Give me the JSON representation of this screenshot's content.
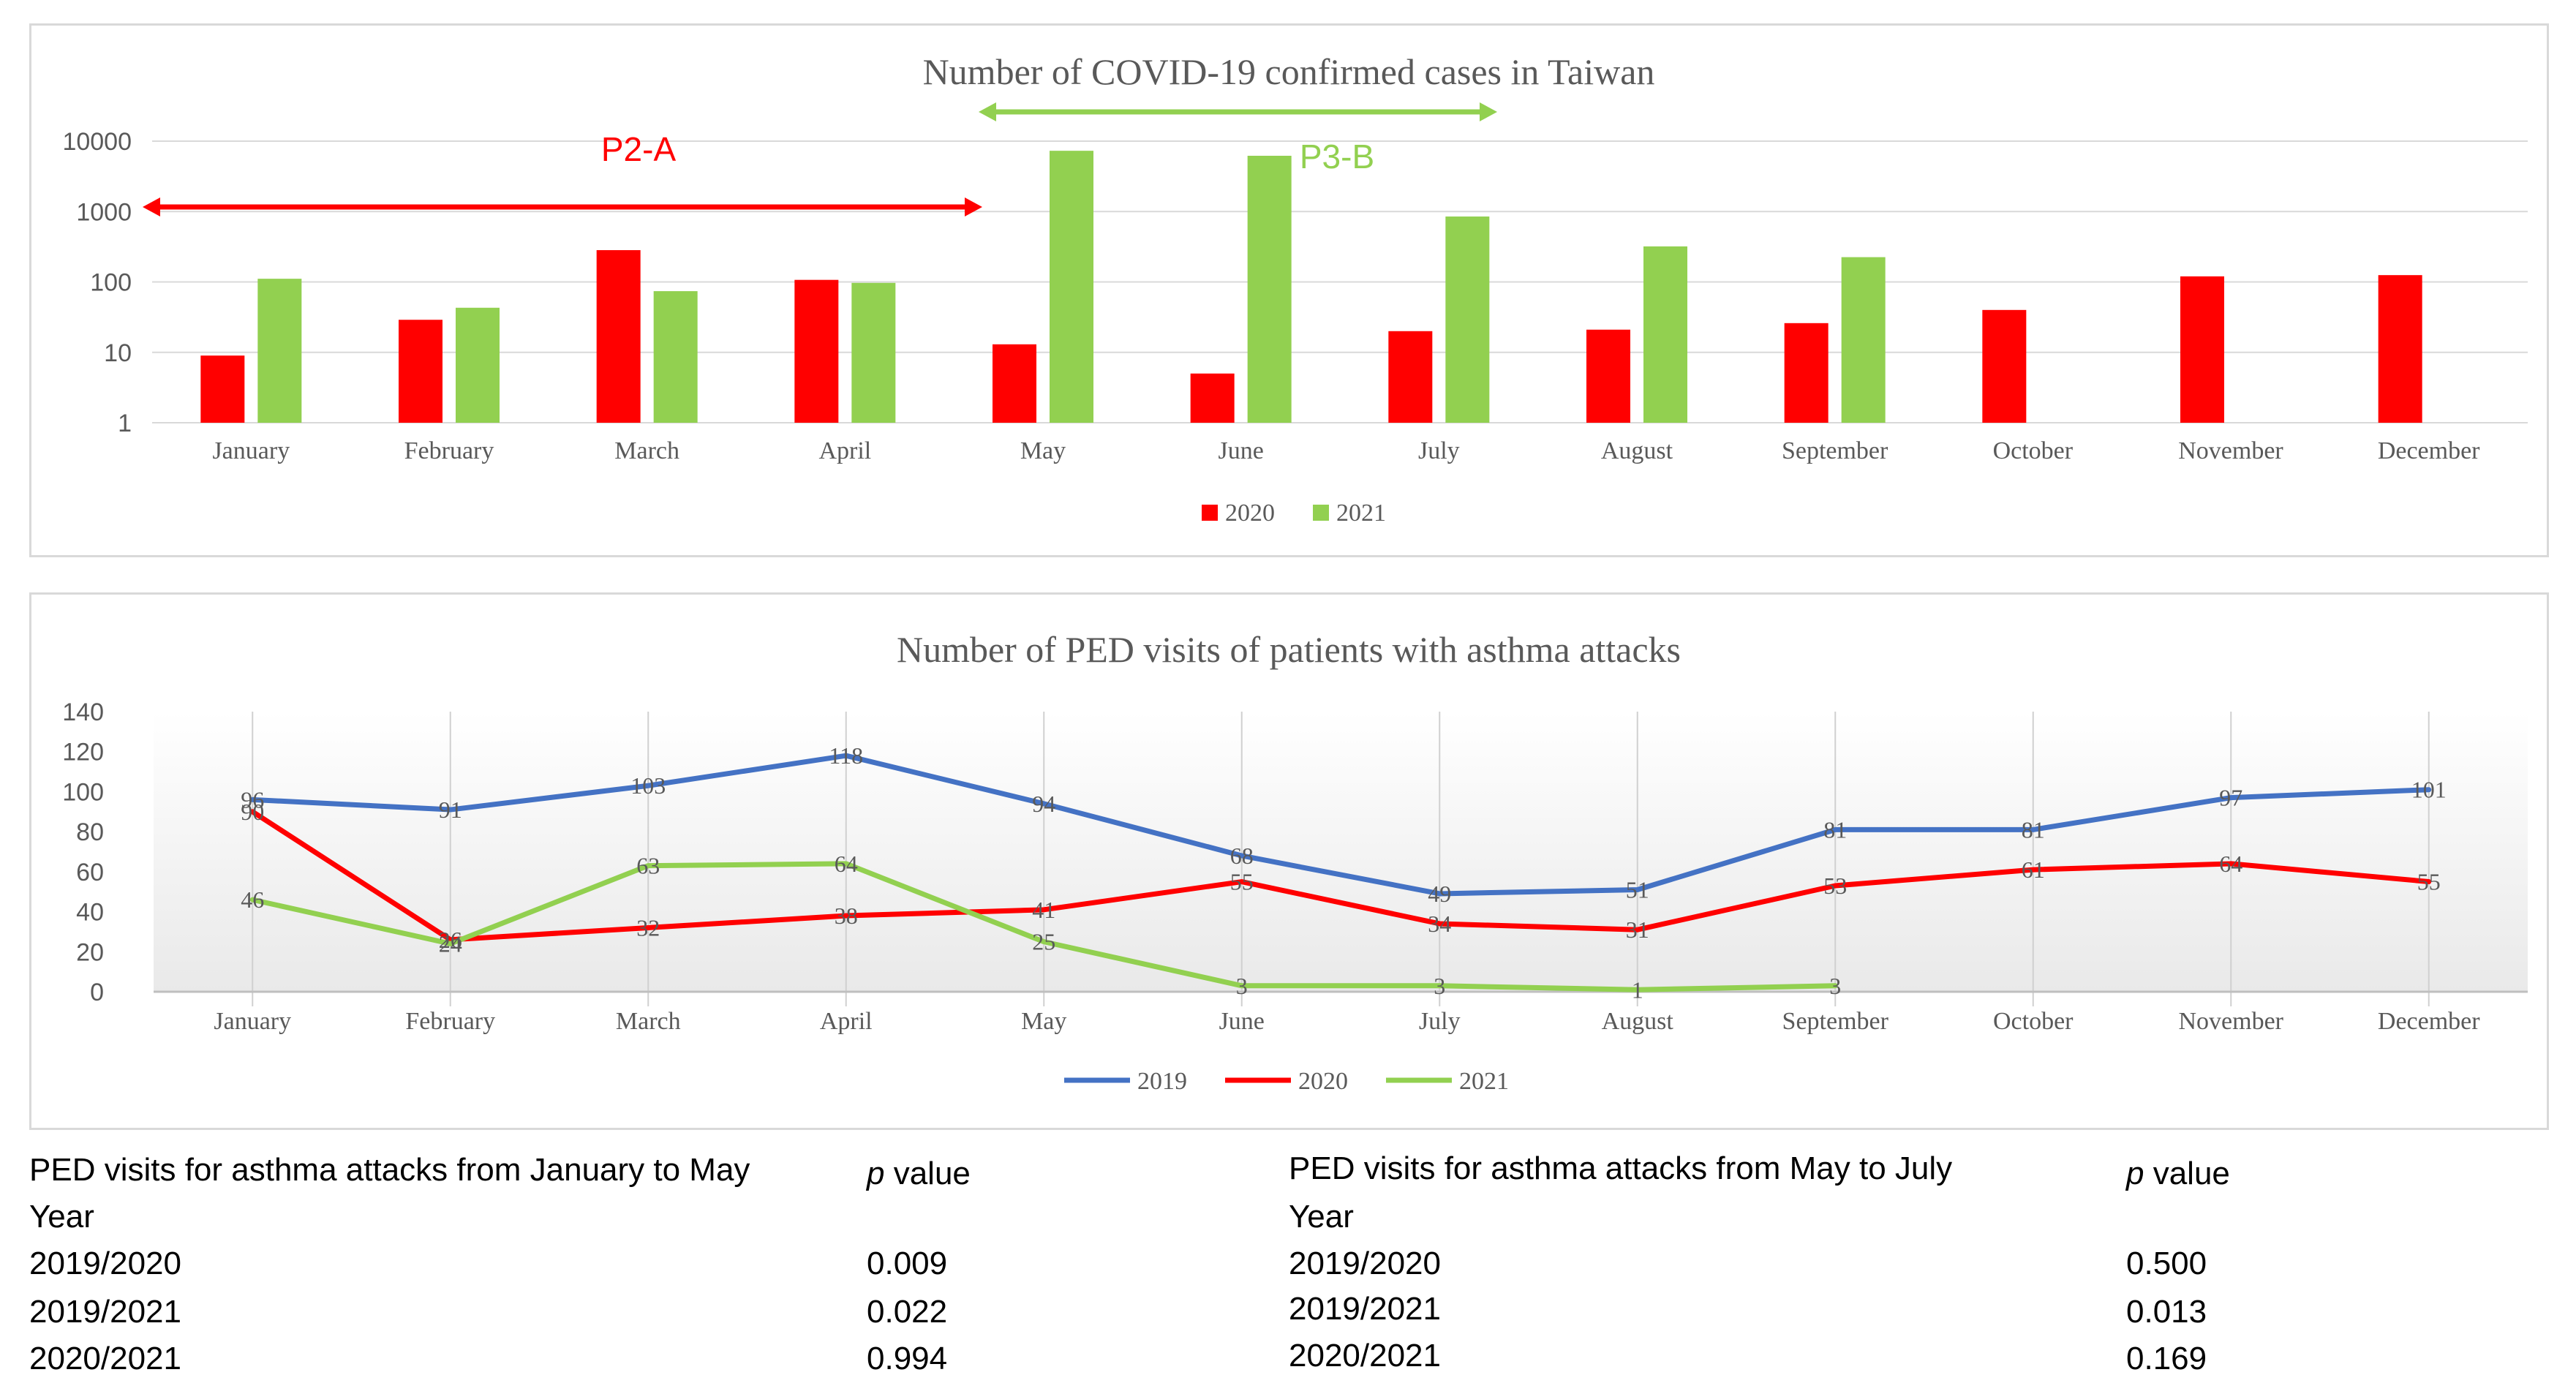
{
  "chart_data": [
    {
      "type": "bar",
      "title": "Number of COVID-19 confirmed cases in Taiwan",
      "y_scale": "log",
      "ylim": [
        1,
        10000
      ],
      "y_ticks": [
        "1",
        "10",
        "100",
        "1000",
        "10000"
      ],
      "grid": true,
      "legend": "bottom",
      "categories": [
        "January",
        "February",
        "March",
        "April",
        "May",
        "June",
        "July",
        "August",
        "September",
        "October",
        "November",
        "December"
      ],
      "series": [
        {
          "name": "2020",
          "color": "#ff0000",
          "values": [
            9,
            29,
            283,
            107,
            13,
            5,
            20,
            21,
            26,
            40,
            120,
            125
          ]
        },
        {
          "name": "2021",
          "color": "#92d050",
          "values": [
            111,
            43,
            74,
            97,
            7300,
            6200,
            850,
            320,
            225,
            null,
            null,
            null
          ]
        }
      ],
      "annotations": [
        {
          "label": "P2-A",
          "color": "#ff0000",
          "from": "January",
          "to": "May"
        },
        {
          "label": "P3-B",
          "color": "#92d050",
          "from": "May",
          "to": "July"
        }
      ]
    },
    {
      "type": "line",
      "title": "Number of PED visits of patients with asthma attacks",
      "ylim": [
        0,
        140
      ],
      "y_ticks": [
        "0",
        "20",
        "40",
        "60",
        "80",
        "100",
        "120",
        "140"
      ],
      "grid": true,
      "legend": "bottom",
      "categories": [
        "January",
        "February",
        "March",
        "April",
        "May",
        "June",
        "July",
        "August",
        "September",
        "October",
        "November",
        "December"
      ],
      "series": [
        {
          "name": "2019",
          "color": "#4472c4",
          "values": [
            96,
            91,
            103,
            118,
            94,
            68,
            49,
            51,
            81,
            81,
            97,
            101
          ]
        },
        {
          "name": "2020",
          "color": "#ff0000",
          "values": [
            90,
            26,
            32,
            38,
            41,
            55,
            34,
            31,
            53,
            61,
            64,
            55
          ]
        },
        {
          "name": "2021",
          "color": "#92d050",
          "values": [
            46,
            24,
            63,
            64,
            25,
            3,
            3,
            1,
            3,
            null,
            null,
            null
          ]
        }
      ]
    }
  ],
  "stats_left": {
    "header": "PED visits for asthma attacks from January to May",
    "header2": "Year",
    "p_italic": "p",
    "p_rest": " value",
    "rows": [
      {
        "year": "2019/2020",
        "p": "0.009"
      },
      {
        "year": "2019/2021",
        "p": "0.022"
      },
      {
        "year": "2020/2021",
        "p": "0.994"
      }
    ]
  },
  "stats_right": {
    "header": "PED visits for asthma attacks from May to July",
    "header2": "Year",
    "p_italic": "p",
    "p_rest": " value",
    "rows": [
      {
        "year": "2019/2020",
        "p": "0.500"
      },
      {
        "year": "2019/2021",
        "p": "0.013"
      },
      {
        "year": "2020/2021",
        "p": "0.169"
      }
    ]
  }
}
